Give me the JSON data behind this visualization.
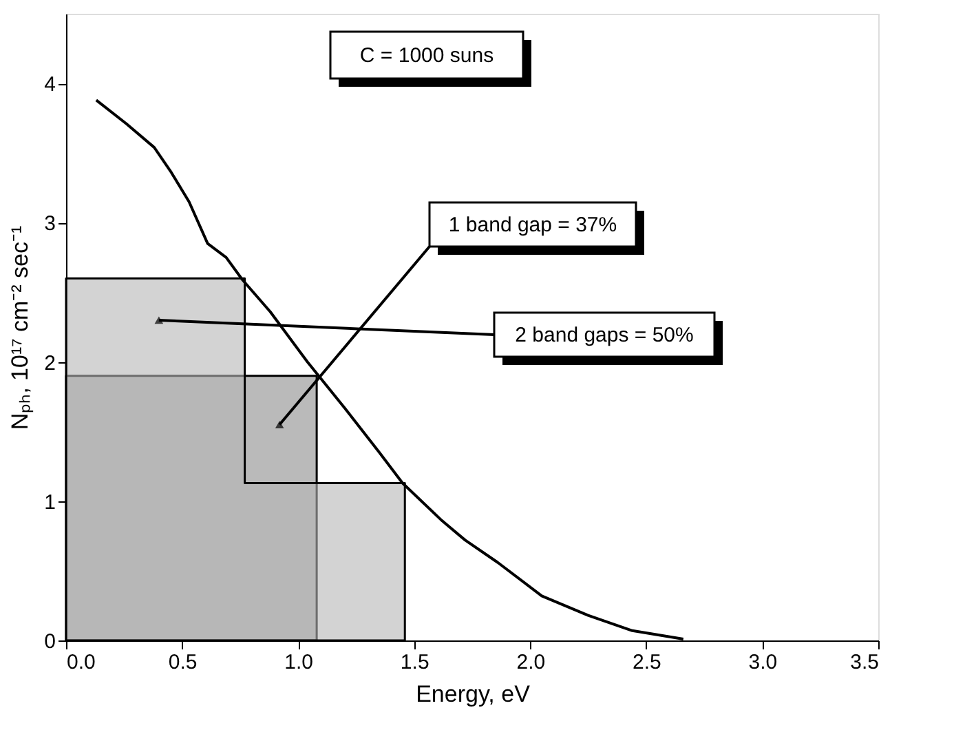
{
  "chart_data": {
    "type": "line",
    "xlabel": "Energy, eV",
    "ylabel": "Nₚₕ, 10¹⁷ cm⁻² sec⁻¹",
    "xlim": [
      0,
      3.5
    ],
    "xticks": [
      {
        "value": 0,
        "label": "0.0"
      },
      0.5,
      {
        "value": 1,
        "label": "1.0"
      },
      1.5,
      {
        "value": 2,
        "label": "2.0"
      },
      2.5,
      {
        "value": 3,
        "label": "3.0"
      },
      3.5
    ],
    "ylim": [
      0,
      4.5
    ],
    "yticks": [
      0,
      1,
      2,
      3,
      4
    ],
    "grid": false,
    "legend": false,
    "series": [
      {
        "type": "area",
        "color": "#8c8c8c",
        "x": [
          0,
          1.08
        ],
        "values": [
          1.9,
          1.9
        ]
      },
      {
        "type": "area",
        "color": "#b5b5b5",
        "x": [
          0,
          0.77,
          0.77,
          1.46
        ],
        "values": [
          2.6,
          2.6,
          1.13,
          1.13
        ]
      },
      {
        "color": "#000000",
        "x": [
          0.13,
          0.26,
          0.38,
          0.45,
          0.53,
          0.61,
          0.69,
          0.76,
          0.88,
          1.04,
          1.2,
          1.35,
          1.45,
          1.62,
          1.72,
          1.86,
          2.05,
          2.25,
          2.44,
          2.66
        ],
        "values": [
          3.88,
          3.71,
          3.54,
          3.37,
          3.15,
          2.85,
          2.75,
          2.59,
          2.36,
          2.0,
          1.67,
          1.35,
          1.13,
          0.86,
          0.72,
          0.56,
          0.32,
          0.18,
          0.07,
          0.01
        ]
      }
    ],
    "annotations": [
      "C = 1000 suns",
      {
        "text": "1 band gap = 37%",
        "x": 0.92,
        "y": 1.55
      },
      {
        "text": "2 band gaps = 50%",
        "x": 0.4,
        "y": 2.3
      }
    ]
  }
}
